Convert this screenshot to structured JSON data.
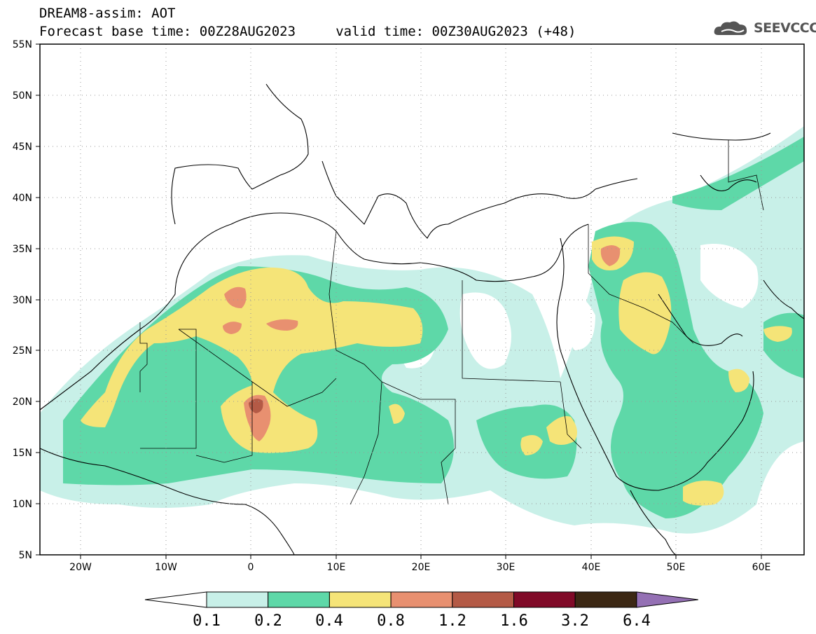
{
  "title": {
    "line1": "DREAM8-assim: AOT",
    "line2": "Forecast base time: 00Z28AUG2023     valid time: 00Z30AUG2023 (+48)"
  },
  "logo": {
    "text": "SEEVCCC",
    "icon": "cloud-icon"
  },
  "map": {
    "lon_range": [
      -25,
      65
    ],
    "lat_range": [
      5,
      55
    ],
    "grid": true,
    "lat_ticks": [
      "55N",
      "50N",
      "45N",
      "40N",
      "35N",
      "30N",
      "25N",
      "20N",
      "15N",
      "10N",
      "5N"
    ],
    "lon_ticks": [
      "20W",
      "10W",
      "0",
      "10E",
      "20E",
      "30E",
      "40E",
      "50E",
      "60E"
    ]
  },
  "colorbar": {
    "labels": [
      "0.1",
      "0.2",
      "0.4",
      "0.8",
      "1.2",
      "1.6",
      "3.2",
      "6.4"
    ],
    "colors": [
      "#ffffff",
      "#c8f0e8",
      "#5ed8a8",
      "#f5e478",
      "#e89070",
      "#b45a46",
      "#800a28",
      "#3c2814",
      "#9470b4"
    ]
  }
}
